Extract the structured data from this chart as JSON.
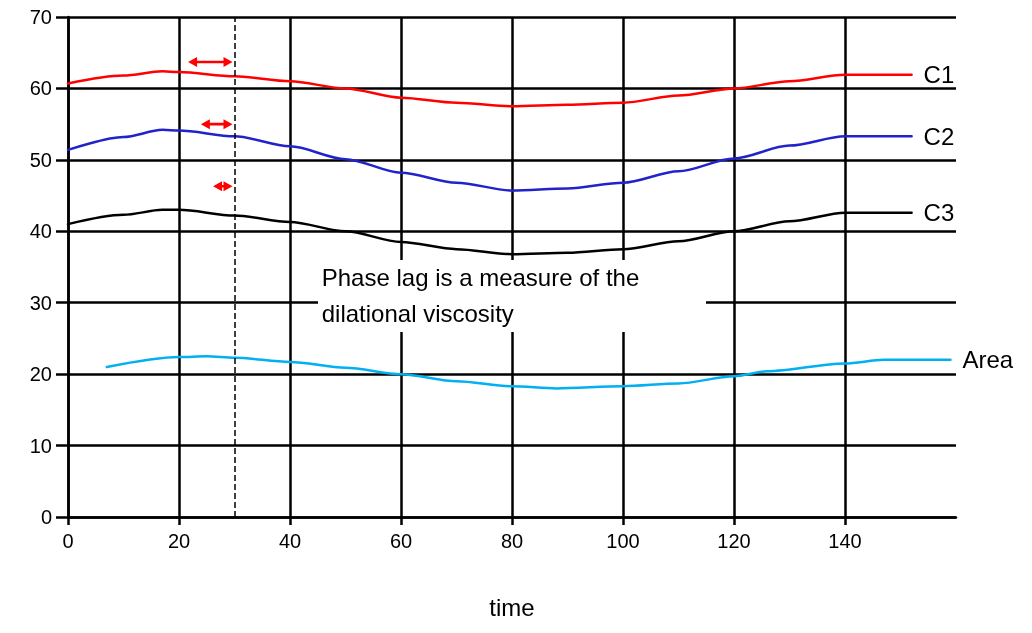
{
  "chart_data": {
    "type": "line",
    "xlabel": "time",
    "x": [
      0,
      10,
      17,
      20,
      30,
      40,
      50,
      60,
      70,
      80,
      90,
      100,
      110,
      120,
      130,
      140,
      152
    ],
    "series": [
      {
        "name": "C1",
        "color": "#ff0000",
        "values": [
          60.7,
          61.8,
          62.4,
          62.3,
          61.7,
          61,
          60,
          58.7,
          58,
          57.5,
          57.7,
          58,
          59,
          60,
          61,
          61.9,
          61.9
        ]
      },
      {
        "name": "C2",
        "color": "#2222cc",
        "values": [
          51.4,
          53.2,
          54.2,
          54.1,
          53.3,
          51.9,
          50.1,
          48.2,
          46.8,
          45.7,
          46,
          46.8,
          48.4,
          50.2,
          52,
          53.3,
          53.3
        ]
      },
      {
        "name": "C3",
        "color": "#000000",
        "values": [
          41,
          42.3,
          43,
          43,
          42.2,
          41.3,
          40,
          38.5,
          37.5,
          36.8,
          37,
          37.5,
          38.6,
          40,
          41.4,
          42.6,
          42.6
        ]
      },
      {
        "name": "Area",
        "color": "#00b0f0",
        "x": [
          7,
          20,
          25,
          30,
          40,
          50,
          60,
          70,
          80,
          88,
          100,
          110,
          120,
          126,
          140,
          147,
          159
        ],
        "values": [
          21,
          22.4,
          22.5,
          22.3,
          21.7,
          20.9,
          20,
          19,
          18.3,
          18,
          18.3,
          18.7,
          19.7,
          20.4,
          21.5,
          22,
          22
        ]
      }
    ],
    "xlim": [
      0,
      160
    ],
    "xticks": [
      0,
      20,
      40,
      60,
      80,
      100,
      120,
      140
    ],
    "ylim": [
      0,
      70
    ],
    "yticks": [
      0,
      10,
      20,
      30,
      40,
      50,
      60,
      70
    ],
    "ref_lines": [
      {
        "axis": "x",
        "value": 30,
        "color": "#000000",
        "line_style": "dashed"
      }
    ],
    "annotations": [
      "Phase lag is a measure of the dilational viscosity"
    ],
    "grid": true,
    "legend": false,
    "marker": "none",
    "line_style": "solid"
  }
}
